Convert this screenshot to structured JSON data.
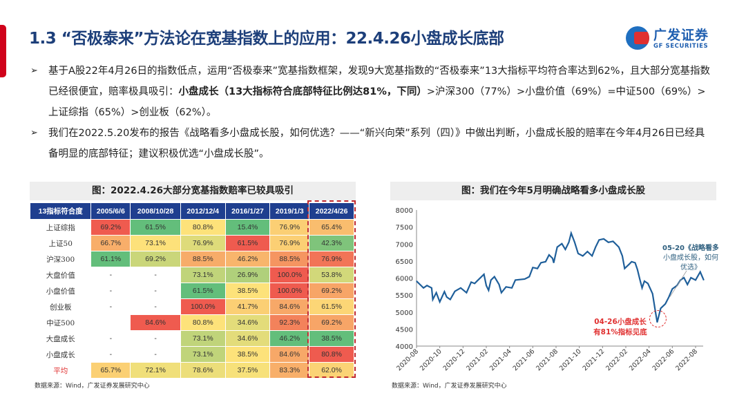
{
  "header": {
    "title": "1.3 “否极泰来”方法论在宽基指数上的应用：22.4.26小盘成长底部",
    "logo_cn": "广发证券",
    "logo_en": "GF SECURITIES"
  },
  "bullets": [
    {
      "pre": "基于A股22年4月26日的指数低点，运用“否极泰来”宽基指数框架，发现9大宽基指数的“否极泰来”13大指标平均符合率达到62%，且大部分宽基指数已经很便宜，赔率极具吸引：",
      "bold": "小盘成长（13大指标符合底部特征比例达81%，下同）",
      "post": ">沪深300（77%）>小盘价值（69%）=中证500（69%）>上证综指（65%）>创业板（62%）。"
    },
    {
      "pre": "我们在2022.5.20发布的报告《战略看多小盘成长股，如何优选？——“新兴向荣”系列（四）》中做出判断，小盘成长股的赔率在今年4月26日已经具备明显的底部特征；建议积极优选“小盘成长股”。",
      "bold": "",
      "post": ""
    }
  ],
  "left_panel": {
    "title": "图：2022.4.26大部分宽基指数赔率已较具吸引",
    "source": "数据来源：Wind，广发证券发展研究中心",
    "table": {
      "headers": [
        "13指标符合度",
        "2005/6/6",
        "2008/10/28",
        "2012/12/4",
        "2016/1/27",
        "2019/1/3",
        "2022/4/26"
      ],
      "rows": [
        [
          "上证综指",
          "69.2%",
          "61.5%",
          "80.8%",
          "15.4%",
          "76.9%",
          "65.4%"
        ],
        [
          "上证50",
          "66.7%",
          "73.1%",
          "76.9%",
          "61.5%",
          "76.9%",
          "42.3%"
        ],
        [
          "沪深300",
          "61.1%",
          "69.2%",
          "88.5%",
          "46.2%",
          "88.5%",
          "76.9%"
        ],
        [
          "大盘价值",
          "-",
          "-",
          "73.1%",
          "26.9%",
          "100.0%",
          "53.8%"
        ],
        [
          "小盘价值",
          "-",
          "-",
          "61.5%",
          "38.5%",
          "100.0%",
          "69.2%"
        ],
        [
          "创业板",
          "-",
          "-",
          "100.0%",
          "41.7%",
          "84.6%",
          "61.5%"
        ],
        [
          "中证500",
          "",
          "84.6%",
          "80.8%",
          "34.6%",
          "92.3%",
          "69.2%"
        ],
        [
          "大盘成长",
          "-",
          "-",
          "73.1%",
          "34.6%",
          "46.2%",
          "38.5%"
        ],
        [
          "小盘成长",
          "-",
          "-",
          "73.1%",
          "38.5%",
          "84.6%",
          "80.8%"
        ],
        [
          "平均",
          "65.7%",
          "72.1%",
          "78.6%",
          "37.5%",
          "83.3%",
          "62.0%"
        ]
      ]
    }
  },
  "right_panel": {
    "title": "图：我们在今年5月明确战略看多小盘成长股",
    "source": "数据来源：Wind，广发证券发展研究中心"
  },
  "chart_data": {
    "type": "line",
    "title": "",
    "xlabel": "",
    "ylabel": "",
    "ylim": [
      4000,
      8000
    ],
    "yticks": [
      "4000",
      "4500",
      "5000",
      "5500",
      "6000",
      "6500",
      "7000",
      "7500",
      "8000"
    ],
    "xticks": [
      "2020-08",
      "2020-10",
      "2020-12",
      "2021-02",
      "2021-04",
      "2021-06",
      "2021-08",
      "2021-10",
      "2021-12",
      "2022-02",
      "2022-04",
      "2022-06",
      "2022-08"
    ],
    "x_unit": "months since 2020-08",
    "series": [
      {
        "name": "小盘成长",
        "color": "#1f5f9a",
        "points": [
          [
            0,
            5910
          ],
          [
            0.3,
            5810
          ],
          [
            0.6,
            5710
          ],
          [
            0.9,
            5780
          ],
          [
            1.3,
            5710
          ],
          [
            1.4,
            5370
          ],
          [
            1.7,
            5570
          ],
          [
            2.0,
            5300
          ],
          [
            2.4,
            5600
          ],
          [
            2.6,
            5440
          ],
          [
            2.9,
            5370
          ],
          [
            3.3,
            5610
          ],
          [
            3.8,
            5710
          ],
          [
            4.3,
            5570
          ],
          [
            4.7,
            5880
          ],
          [
            5.0,
            5840
          ],
          [
            5.2,
            5910
          ],
          [
            5.8,
            6110
          ],
          [
            6.0,
            5780
          ],
          [
            6.2,
            5640
          ],
          [
            6.4,
            5940
          ],
          [
            6.7,
            6040
          ],
          [
            7.1,
            5810
          ],
          [
            7.3,
            5570
          ],
          [
            7.7,
            5740
          ],
          [
            8.2,
            5710
          ],
          [
            8.5,
            5940
          ],
          [
            9.3,
            5970
          ],
          [
            9.7,
            6040
          ],
          [
            10.0,
            6310
          ],
          [
            10.4,
            6280
          ],
          [
            10.7,
            6450
          ],
          [
            11.1,
            6480
          ],
          [
            11.4,
            6680
          ],
          [
            11.7,
            6580
          ],
          [
            11.8,
            6450
          ],
          [
            12.1,
            6910
          ],
          [
            12.5,
            7010
          ],
          [
            12.8,
            6840
          ],
          [
            13.1,
            7050
          ],
          [
            13.3,
            7320
          ],
          [
            13.6,
            7050
          ],
          [
            13.9,
            6720
          ],
          [
            14.3,
            6650
          ],
          [
            14.7,
            6780
          ],
          [
            15.1,
            6650
          ],
          [
            15.4,
            6910
          ],
          [
            15.7,
            7120
          ],
          [
            16.1,
            7150
          ],
          [
            16.5,
            7050
          ],
          [
            16.9,
            7080
          ],
          [
            17.4,
            6910
          ],
          [
            17.7,
            6650
          ],
          [
            17.9,
            6280
          ],
          [
            18.3,
            6410
          ],
          [
            18.5,
            6480
          ],
          [
            18.8,
            6450
          ],
          [
            19.0,
            6250
          ],
          [
            19.2,
            5970
          ],
          [
            19.4,
            5710
          ],
          [
            19.6,
            5910
          ],
          [
            19.9,
            5840
          ],
          [
            20.3,
            5540
          ],
          [
            20.5,
            5110
          ],
          [
            20.7,
            4700
          ],
          [
            21.0,
            5110
          ],
          [
            21.4,
            5240
          ],
          [
            21.7,
            5440
          ],
          [
            22.0,
            5680
          ],
          [
            22.4,
            5780
          ],
          [
            22.7,
            5940
          ],
          [
            23.0,
            6010
          ],
          [
            23.3,
            5810
          ],
          [
            23.6,
            6010
          ],
          [
            24.0,
            5940
          ],
          [
            24.4,
            6180
          ],
          [
            24.7,
            5940
          ]
        ]
      }
    ],
    "annotations": [
      {
        "lines": [
          "05-20《战略看多",
          "小盘成长股，如何",
          "优选》"
        ],
        "color": "#2e5f7f",
        "at": [
          21.8,
          5450
        ]
      },
      {
        "lines": [
          "04-26小盘成长",
          "有81%指标见底"
        ],
        "color": "#e03030",
        "at": [
          20.7,
          4700
        ]
      }
    ]
  },
  "colors": {
    "title": "#1d3f7a",
    "accent": "#d0021b",
    "header_bg": "#1f3f8f",
    "green": "#63be7b",
    "yellow": "#fde27a",
    "red": "#ef5b4f"
  }
}
